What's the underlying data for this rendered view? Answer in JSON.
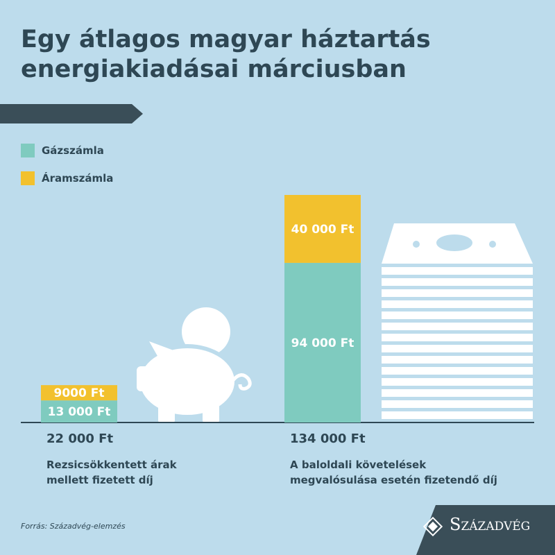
{
  "title": "Egy átlagos magyar háztartás energiakiadásai márciusban",
  "chart_data": {
    "type": "stacked_bar",
    "categories": [
      "Rezsicsökkentett árak mellett fizetett díj",
      "A baloldali követelések megvalósulása esetén fizetendő díj"
    ],
    "total_labels": [
      "22 000 Ft",
      "134 000 Ft"
    ],
    "series": [
      {
        "name": "Gázszámla",
        "color": "#7fcbbf",
        "values": [
          13000,
          94000
        ],
        "value_labels": [
          "13 000 Ft",
          "94 000 Ft"
        ]
      },
      {
        "name": "Áramszámla",
        "color": "#f2c12e",
        "values": [
          9000,
          40000
        ],
        "value_labels": [
          "9000 Ft",
          "40 000 Ft"
        ]
      }
    ]
  },
  "source": "Forrás: Századvég-elemzés",
  "logo": "Századvég"
}
